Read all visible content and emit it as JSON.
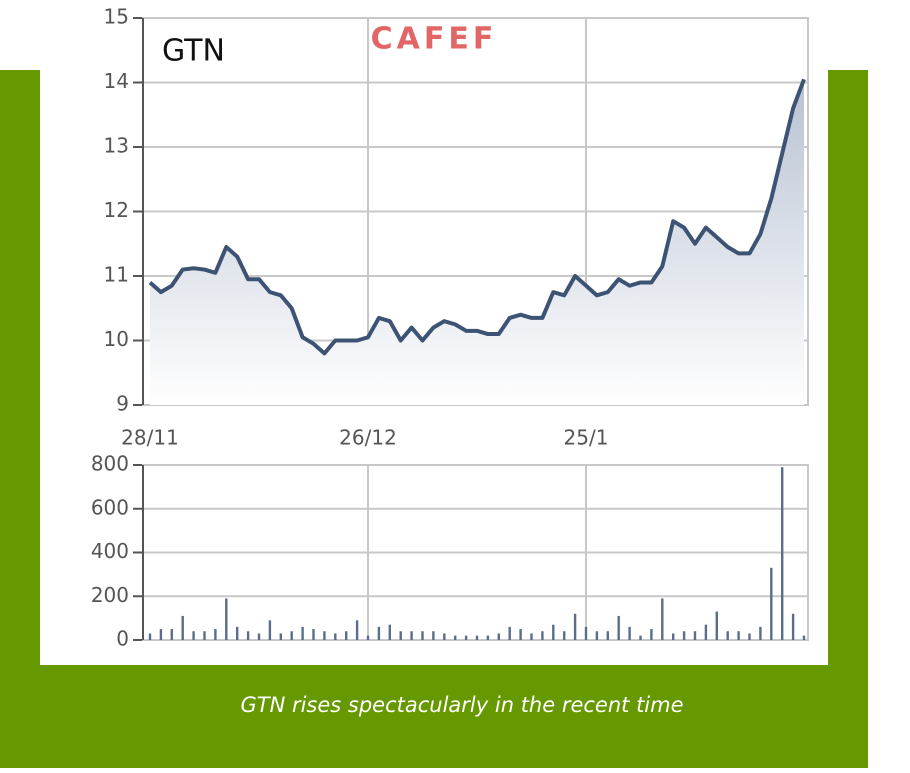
{
  "chart_data": [
    {
      "type": "line",
      "label": "GTN",
      "watermark": "CAFEF",
      "categories": [
        "28/11",
        null,
        null,
        null,
        null,
        null,
        null,
        null,
        null,
        null,
        null,
        null,
        null,
        null,
        null,
        null,
        null,
        null,
        null,
        null,
        "26/12",
        null,
        null,
        null,
        null,
        null,
        null,
        null,
        null,
        null,
        null,
        null,
        null,
        null,
        null,
        null,
        null,
        null,
        null,
        null,
        "25/1",
        null,
        null,
        null,
        null,
        null,
        null,
        null,
        null,
        null,
        null,
        null,
        null,
        null,
        null,
        null,
        null,
        null,
        null,
        null,
        null
      ],
      "values": [
        10.9,
        10.75,
        10.85,
        11.1,
        11.12,
        11.1,
        11.05,
        11.45,
        11.3,
        10.95,
        10.95,
        10.75,
        10.7,
        10.5,
        10.05,
        9.95,
        9.8,
        10.0,
        10.0,
        10.0,
        10.05,
        10.35,
        10.3,
        10.0,
        10.2,
        10.0,
        10.2,
        10.3,
        10.25,
        10.15,
        10.15,
        10.1,
        10.1,
        10.35,
        10.4,
        10.35,
        10.35,
        10.75,
        10.7,
        11.0,
        10.85,
        10.7,
        10.75,
        10.95,
        10.85,
        10.9,
        10.9,
        11.15,
        11.85,
        11.75,
        11.5,
        11.75,
        11.6,
        11.45,
        11.35,
        11.35,
        11.65,
        12.2,
        12.9,
        13.6,
        14.05
      ],
      "color": "#3d5373",
      "ylim": [
        9,
        15
      ],
      "yticks": [
        9,
        10,
        11,
        12,
        13,
        14,
        15
      ],
      "grid": true
    },
    {
      "type": "bar",
      "values": [
        30,
        50,
        50,
        110,
        40,
        40,
        50,
        190,
        60,
        40,
        30,
        90,
        30,
        40,
        60,
        50,
        40,
        30,
        40,
        90,
        20,
        60,
        70,
        40,
        40,
        40,
        40,
        30,
        20,
        20,
        20,
        20,
        30,
        60,
        50,
        30,
        40,
        70,
        40,
        120,
        60,
        40,
        40,
        110,
        60,
        20,
        50,
        190,
        30,
        40,
        40,
        70,
        130,
        40,
        40,
        30,
        60,
        330,
        790,
        120,
        20
      ],
      "color": "#5a6d8a",
      "ylim": [
        0,
        800
      ],
      "yticks": [
        0,
        200,
        400,
        600,
        800
      ],
      "grid": true
    }
  ],
  "caption": "GTN rises spectacularly in the recent time"
}
